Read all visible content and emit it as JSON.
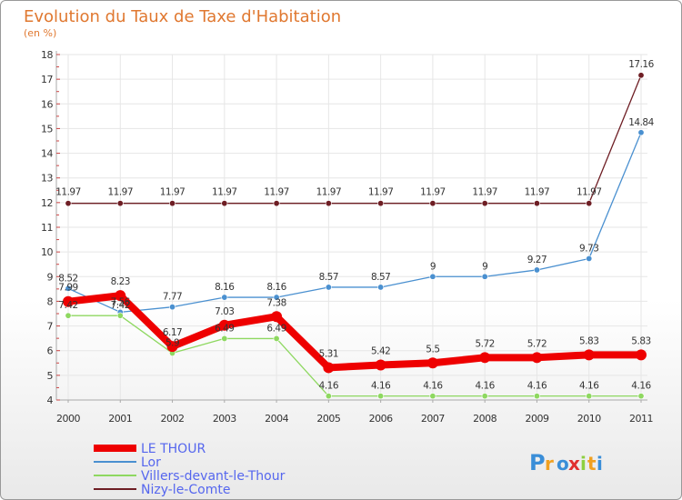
{
  "chart_data": {
    "type": "line",
    "title": "Evolution du Taux de Taxe d'Habitation",
    "subtitle": "(en %)",
    "x": [
      "2000",
      "2001",
      "2002",
      "2003",
      "2004",
      "2005",
      "2006",
      "2007",
      "2008",
      "2009",
      "2010",
      "2011"
    ],
    "ylim": [
      4,
      18
    ],
    "yticks": [
      4,
      5,
      6,
      7,
      8,
      9,
      10,
      11,
      12,
      13,
      14,
      15,
      16,
      17,
      18
    ],
    "grid": true,
    "legend_position": "bottom-left",
    "series": [
      {
        "name": "Nizy-le-Comte",
        "color": "#6e1e24",
        "values": [
          11.97,
          11.97,
          11.97,
          11.97,
          11.97,
          11.97,
          11.97,
          11.97,
          11.97,
          11.97,
          11.97,
          17.16
        ],
        "labels": [
          "11.97",
          "11.97",
          "11.97",
          "11.97",
          "11.97",
          "11.97",
          "11.97",
          "11.97",
          "11.97",
          "11.97",
          "11.97",
          "17.16"
        ]
      },
      {
        "name": "Lor",
        "color": "#4a90d0",
        "values": [
          8.52,
          7.56,
          7.77,
          8.16,
          8.16,
          8.57,
          8.57,
          9,
          9,
          9.27,
          9.73,
          14.84
        ],
        "labels": [
          "8.52",
          "7.56",
          "7.77",
          "8.16",
          "8.16",
          "8.57",
          "8.57",
          "9",
          "9",
          "9.27",
          "9.73",
          "14.84"
        ]
      },
      {
        "name": "Villers-devant-le-Thour",
        "color": "#8ed860",
        "values": [
          7.42,
          7.42,
          5.9,
          6.49,
          6.49,
          4.16,
          4.16,
          4.16,
          4.16,
          4.16,
          4.16,
          4.16
        ],
        "labels": [
          "7.42",
          "7.42",
          "5.9",
          "6.49",
          "6.49",
          "4.16",
          "4.16",
          "4.16",
          "4.16",
          "4.16",
          "4.16",
          "4.16"
        ]
      },
      {
        "name": "LE THOUR",
        "color": "#ee0000",
        "values": [
          7.99,
          8.23,
          6.17,
          7.03,
          7.38,
          5.31,
          5.42,
          5.5,
          5.72,
          5.72,
          5.83,
          5.83
        ],
        "labels": [
          "7.99",
          "8.23",
          "6.17",
          "7.03",
          "7.38",
          "5.31",
          "5.42",
          "5.5",
          "5.72",
          "5.72",
          "5.83",
          "5.83"
        ]
      }
    ],
    "legend_order": [
      "LE THOUR",
      "Lor",
      "Villers-devant-le-Thour",
      "Nizy-le-Comte"
    ]
  },
  "logo": {
    "letters": [
      "P",
      "r",
      "o",
      "x",
      "i",
      "t",
      "i"
    ],
    "colors": [
      "#3a8ed8",
      "#f0a020",
      "#3a8ed8",
      "#e03030",
      "#8ed040",
      "#f0a020",
      "#3a8ed8"
    ]
  }
}
